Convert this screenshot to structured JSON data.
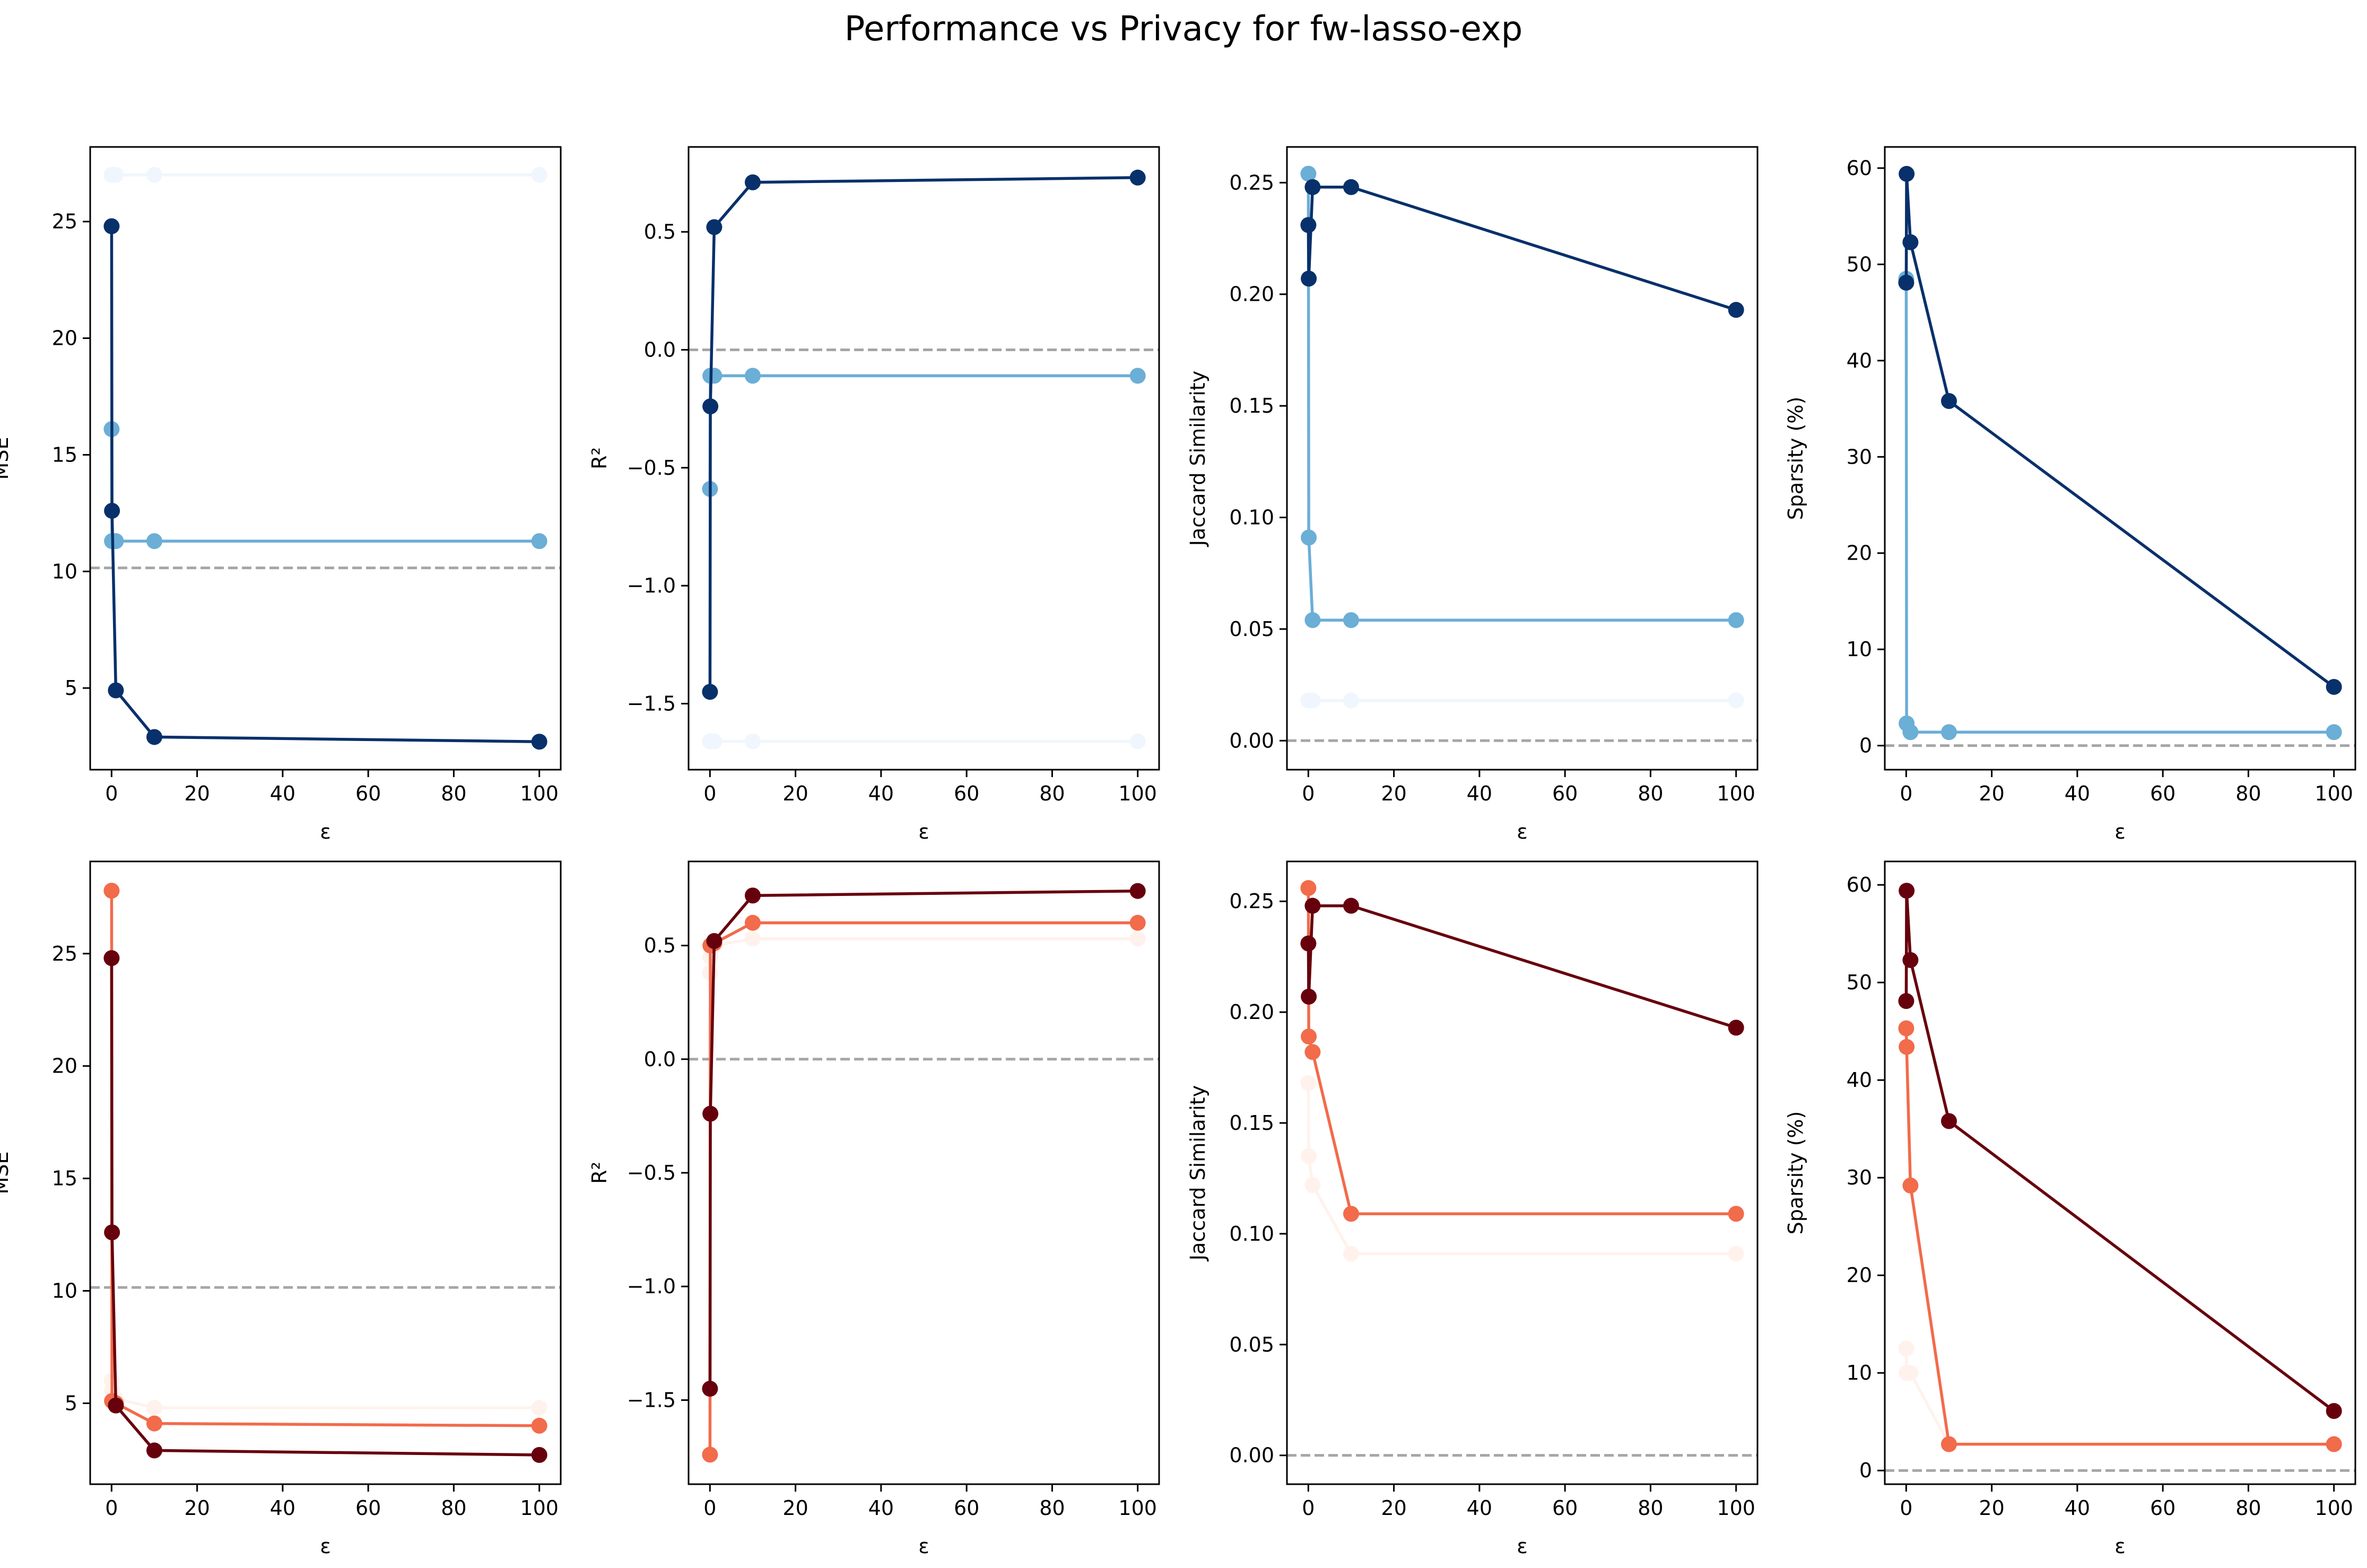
{
  "figure": {
    "title": "Performance vs Privacy for fw-lasso-exp"
  },
  "colors": {
    "blue_light": "#f0f6fd",
    "blue_mid": "#6baed6",
    "blue_dark": "#08306b",
    "red_light": "#fff2ec",
    "red_mid": "#f26b4b",
    "red_dark": "#67000d",
    "reference_line": "#a6a6a6"
  },
  "chart_data": [
    {
      "type": "line",
      "row": 0,
      "col": 0,
      "xlabel": "ε",
      "ylabel": "MSE",
      "xlim": [
        -5,
        105
      ],
      "ylim": [
        1.5,
        28.2
      ],
      "xticks": [
        0,
        20,
        40,
        60,
        80,
        100
      ],
      "xtick_labels": [
        "0",
        "20",
        "40",
        "60",
        "80",
        "100"
      ],
      "yticks": [
        5,
        10,
        15,
        20,
        25
      ],
      "ytick_labels": [
        "5",
        "10",
        "15",
        "20",
        "25"
      ],
      "hline": 10.15,
      "grid": false,
      "series": [
        {
          "color_key": "blue_light",
          "x": [
            0.01,
            0.1,
            1,
            10,
            100
          ],
          "y": [
            27.0,
            27.0,
            27.0,
            27.0,
            27.0
          ]
        },
        {
          "color_key": "blue_mid",
          "x": [
            0.01,
            0.1,
            1,
            10,
            100
          ],
          "y": [
            16.1,
            11.3,
            11.3,
            11.3,
            11.3
          ]
        },
        {
          "color_key": "blue_dark",
          "x": [
            0.01,
            0.1,
            1,
            10,
            100
          ],
          "y": [
            24.8,
            12.6,
            4.9,
            2.9,
            2.7
          ]
        }
      ]
    },
    {
      "type": "line",
      "row": 0,
      "col": 1,
      "xlabel": "ε",
      "ylabel": "R²",
      "xlim": [
        -5,
        105
      ],
      "ylim": [
        -1.78,
        0.86
      ],
      "xticks": [
        0,
        20,
        40,
        60,
        80,
        100
      ],
      "xtick_labels": [
        "0",
        "20",
        "40",
        "60",
        "80",
        "100"
      ],
      "yticks": [
        -1.5,
        -1.0,
        -0.5,
        0.0,
        0.5
      ],
      "ytick_labels": [
        "−1.5",
        "−1.0",
        "−0.5",
        "0.0",
        "0.5"
      ],
      "hline": 0.0,
      "grid": false,
      "series": [
        {
          "color_key": "blue_light",
          "x": [
            0.01,
            0.1,
            1,
            10,
            100
          ],
          "y": [
            -1.66,
            -1.66,
            -1.66,
            -1.66,
            -1.66
          ]
        },
        {
          "color_key": "blue_mid",
          "x": [
            0.01,
            0.1,
            1,
            10,
            100
          ],
          "y": [
            -0.59,
            -0.11,
            -0.11,
            -0.11,
            -0.11
          ]
        },
        {
          "color_key": "blue_dark",
          "x": [
            0.01,
            0.1,
            1,
            10,
            100
          ],
          "y": [
            -1.45,
            -0.24,
            0.52,
            0.71,
            0.73
          ]
        }
      ]
    },
    {
      "type": "line",
      "row": 0,
      "col": 2,
      "xlabel": "ε",
      "ylabel": "Jaccard Similarity",
      "xlim": [
        -5,
        105
      ],
      "ylim": [
        -0.013,
        0.266
      ],
      "xticks": [
        0,
        20,
        40,
        60,
        80,
        100
      ],
      "xtick_labels": [
        "0",
        "20",
        "40",
        "60",
        "80",
        "100"
      ],
      "yticks": [
        0.0,
        0.05,
        0.1,
        0.15,
        0.2,
        0.25
      ],
      "ytick_labels": [
        "0.00",
        "0.05",
        "0.10",
        "0.15",
        "0.20",
        "0.25"
      ],
      "hline": 0.0,
      "grid": false,
      "series": [
        {
          "color_key": "blue_light",
          "x": [
            0.01,
            0.1,
            1,
            10,
            100
          ],
          "y": [
            0.018,
            0.018,
            0.018,
            0.018,
            0.018
          ]
        },
        {
          "color_key": "blue_mid",
          "x": [
            0.01,
            0.1,
            1,
            10,
            100
          ],
          "y": [
            0.254,
            0.091,
            0.054,
            0.054,
            0.054
          ]
        },
        {
          "color_key": "blue_dark",
          "x": [
            0.01,
            0.1,
            1,
            10,
            100
          ],
          "y": [
            0.231,
            0.207,
            0.248,
            0.248,
            0.193
          ]
        }
      ]
    },
    {
      "type": "line",
      "row": 0,
      "col": 3,
      "xlabel": "ε",
      "ylabel": "Sparsity (%)",
      "xlim": [
        -5,
        105
      ],
      "ylim": [
        -2.5,
        62.2
      ],
      "xticks": [
        0,
        20,
        40,
        60,
        80,
        100
      ],
      "xtick_labels": [
        "0",
        "20",
        "40",
        "60",
        "80",
        "100"
      ],
      "yticks": [
        0,
        10,
        20,
        30,
        40,
        50,
        60
      ],
      "ytick_labels": [
        "0",
        "10",
        "20",
        "30",
        "40",
        "50",
        "60"
      ],
      "hline": 0.0,
      "grid": false,
      "series": [
        {
          "color_key": "blue_mid",
          "x": [
            0.01,
            0.1,
            1,
            10,
            100
          ],
          "y": [
            48.5,
            2.3,
            1.4,
            1.4,
            1.4
          ]
        },
        {
          "color_key": "blue_dark",
          "x": [
            0.01,
            0.1,
            1,
            10,
            100
          ],
          "y": [
            48.1,
            59.4,
            52.3,
            35.8,
            6.1
          ]
        }
      ]
    },
    {
      "type": "line",
      "row": 1,
      "col": 0,
      "xlabel": "ε",
      "ylabel": "MSE",
      "xlim": [
        -5,
        105
      ],
      "ylim": [
        1.4,
        29.1
      ],
      "xticks": [
        0,
        20,
        40,
        60,
        80,
        100
      ],
      "xtick_labels": [
        "0",
        "20",
        "40",
        "60",
        "80",
        "100"
      ],
      "yticks": [
        5,
        10,
        15,
        20,
        25
      ],
      "ytick_labels": [
        "5",
        "10",
        "15",
        "20",
        "25"
      ],
      "hline": 10.15,
      "grid": false,
      "series": [
        {
          "color_key": "red_light",
          "x": [
            0.01,
            0.1,
            1,
            10,
            100
          ],
          "y": [
            6.0,
            5.6,
            5.2,
            4.8,
            4.8
          ]
        },
        {
          "color_key": "red_mid",
          "x": [
            0.01,
            0.1,
            1,
            10,
            100
          ],
          "y": [
            27.8,
            5.1,
            5.0,
            4.1,
            4.0
          ]
        },
        {
          "color_key": "red_dark",
          "x": [
            0.01,
            0.1,
            1,
            10,
            100
          ],
          "y": [
            24.8,
            12.6,
            4.9,
            2.9,
            2.7
          ]
        }
      ]
    },
    {
      "type": "line",
      "row": 1,
      "col": 1,
      "xlabel": "ε",
      "ylabel": "R²",
      "xlim": [
        -5,
        105
      ],
      "ylim": [
        -1.87,
        0.87
      ],
      "xticks": [
        0,
        20,
        40,
        60,
        80,
        100
      ],
      "xtick_labels": [
        "0",
        "20",
        "40",
        "60",
        "80",
        "100"
      ],
      "yticks": [
        -1.5,
        -1.0,
        -0.5,
        0.0,
        0.5
      ],
      "ytick_labels": [
        "−1.5",
        "−1.0",
        "−0.5",
        "0.0",
        "0.5"
      ],
      "hline": 0.0,
      "grid": false,
      "series": [
        {
          "color_key": "red_light",
          "x": [
            0.01,
            0.1,
            1,
            10,
            100
          ],
          "y": [
            0.38,
            0.45,
            0.5,
            0.53,
            0.53
          ]
        },
        {
          "color_key": "red_mid",
          "x": [
            0.01,
            0.1,
            1,
            10,
            100
          ],
          "y": [
            -1.74,
            0.5,
            0.51,
            0.6,
            0.6
          ]
        },
        {
          "color_key": "red_dark",
          "x": [
            0.01,
            0.1,
            1,
            10,
            100
          ],
          "y": [
            -1.45,
            -0.24,
            0.52,
            0.72,
            0.74
          ]
        }
      ]
    },
    {
      "type": "line",
      "row": 1,
      "col": 2,
      "xlabel": "ε",
      "ylabel": "Jaccard Similarity",
      "xlim": [
        -5,
        105
      ],
      "ylim": [
        -0.013,
        0.268
      ],
      "xticks": [
        0,
        20,
        40,
        60,
        80,
        100
      ],
      "xtick_labels": [
        "0",
        "20",
        "40",
        "60",
        "80",
        "100"
      ],
      "yticks": [
        0.0,
        0.05,
        0.1,
        0.15,
        0.2,
        0.25
      ],
      "ytick_labels": [
        "0.00",
        "0.05",
        "0.10",
        "0.15",
        "0.20",
        "0.25"
      ],
      "hline": 0.0,
      "grid": false,
      "series": [
        {
          "color_key": "red_light",
          "x": [
            0.01,
            0.1,
            1,
            10,
            100
          ],
          "y": [
            0.168,
            0.135,
            0.122,
            0.091,
            0.091
          ]
        },
        {
          "color_key": "red_mid",
          "x": [
            0.01,
            0.1,
            1,
            10,
            100
          ],
          "y": [
            0.256,
            0.189,
            0.182,
            0.109,
            0.109
          ]
        },
        {
          "color_key": "red_dark",
          "x": [
            0.01,
            0.1,
            1,
            10,
            100
          ],
          "y": [
            0.231,
            0.207,
            0.248,
            0.248,
            0.193
          ]
        }
      ]
    },
    {
      "type": "line",
      "row": 1,
      "col": 3,
      "xlabel": "ε",
      "ylabel": "Sparsity (%)",
      "xlim": [
        -5,
        105
      ],
      "ylim": [
        -1.4,
        62.4
      ],
      "xticks": [
        0,
        20,
        40,
        60,
        80,
        100
      ],
      "xtick_labels": [
        "0",
        "20",
        "40",
        "60",
        "80",
        "100"
      ],
      "yticks": [
        0,
        10,
        20,
        30,
        40,
        50,
        60
      ],
      "ytick_labels": [
        "0",
        "10",
        "20",
        "30",
        "40",
        "50",
        "60"
      ],
      "hline": 0.0,
      "grid": false,
      "series": [
        {
          "color_key": "red_light",
          "x": [
            0.01,
            0.1,
            1,
            10,
            100
          ],
          "y": [
            12.5,
            10.0,
            10.0,
            2.7,
            2.7
          ]
        },
        {
          "color_key": "red_mid",
          "x": [
            0.01,
            0.1,
            1,
            10,
            100
          ],
          "y": [
            45.3,
            43.4,
            29.2,
            2.7,
            2.7
          ]
        },
        {
          "color_key": "red_dark",
          "x": [
            0.01,
            0.1,
            1,
            10,
            100
          ],
          "y": [
            48.1,
            59.4,
            52.3,
            35.8,
            6.1
          ]
        }
      ]
    }
  ]
}
